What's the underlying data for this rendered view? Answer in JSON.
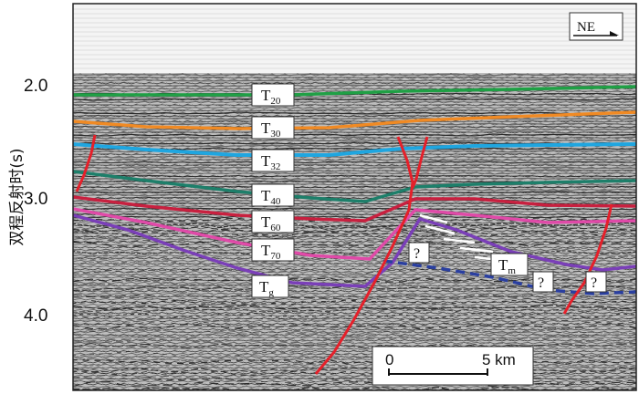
{
  "figure": {
    "y_axis": {
      "label": "双程反射时(s)",
      "ticks": [
        "2.0",
        "3.0",
        "4.0"
      ]
    },
    "direction": "NE",
    "scale_bar": {
      "start": "0",
      "end": "5 km"
    },
    "horizons": [
      {
        "base": "T",
        "sub": "20",
        "color": "#1fa045"
      },
      {
        "base": "T",
        "sub": "30",
        "color": "#f08a24"
      },
      {
        "base": "T",
        "sub": "32",
        "color": "#1fa6e0"
      },
      {
        "base": "T",
        "sub": "40",
        "color": "#1d7f6a"
      },
      {
        "base": "T",
        "sub": "60",
        "color": "#c8203f"
      },
      {
        "base": "T",
        "sub": "70",
        "color": "#e04aa8"
      },
      {
        "base": "T",
        "sub": "g",
        "color": "#7a3fb8"
      },
      {
        "base": "T",
        "sub": "m",
        "color": "#2a3fa0"
      }
    ],
    "fault_color": "#e5202a",
    "unknown_marks": [
      "?",
      "?",
      "?"
    ]
  }
}
